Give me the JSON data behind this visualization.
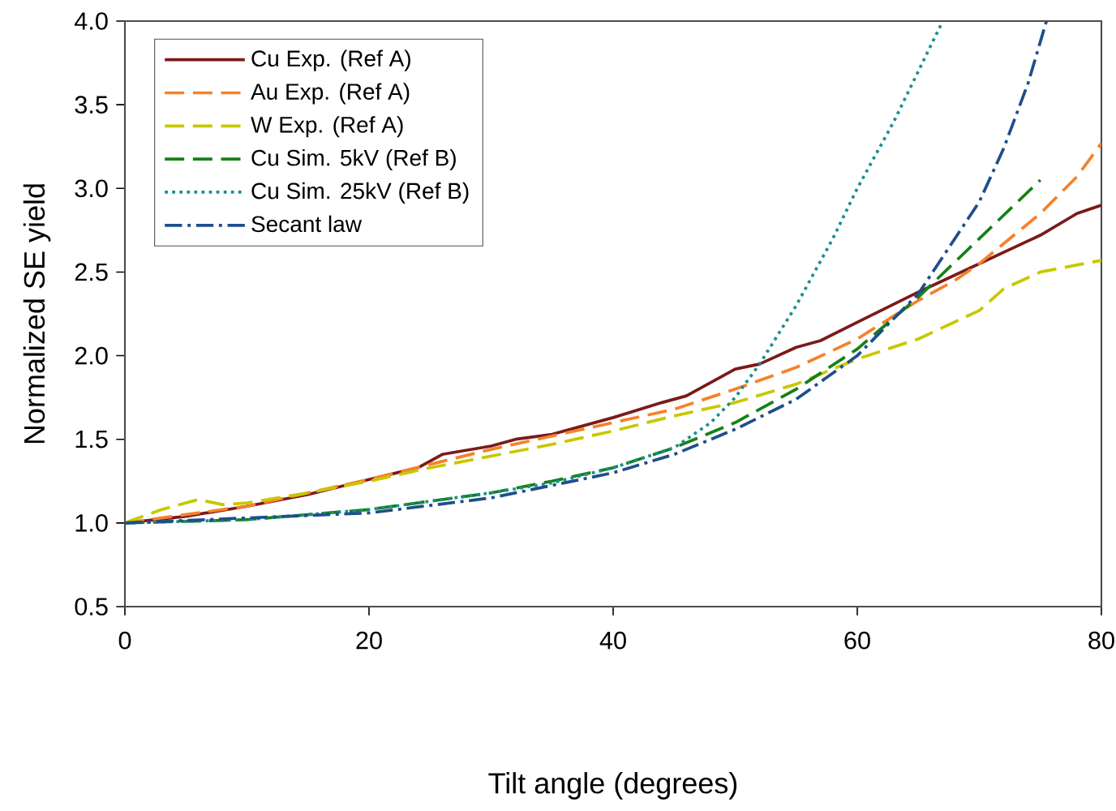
{
  "chart_data": {
    "type": "line",
    "xlabel": "Tilt angle (degrees)",
    "ylabel": "Normalized SE yield",
    "xlim": [
      0,
      80
    ],
    "ylim": [
      0.5,
      4.0
    ],
    "xticks": [
      0,
      20,
      40,
      60,
      80
    ],
    "yticks": [
      {
        "value": 0.5,
        "label": "0.5"
      },
      {
        "value": 1,
        "label": "1.0"
      },
      {
        "value": 1.5,
        "label": "1.5"
      },
      {
        "value": 2,
        "label": "2.0"
      },
      {
        "value": 2.5,
        "label": "2.5"
      },
      {
        "value": 3,
        "label": "3.0"
      },
      {
        "value": 3.5,
        "label": "3.5"
      },
      {
        "value": 4,
        "label": "4.0"
      }
    ],
    "legend": "top left",
    "grid": false,
    "marker": "none",
    "series": [
      {
        "name": "Cu Exp. (Ref A)",
        "color": "#7b1a1a",
        "line_style": "solid",
        "x": [
          0,
          5,
          10,
          15,
          20,
          24,
          26,
          30,
          32,
          35,
          40,
          44,
          46,
          50,
          52,
          55,
          57,
          60,
          65,
          70,
          75,
          78,
          80
        ],
        "values": [
          1.0,
          1.04,
          1.1,
          1.17,
          1.26,
          1.33,
          1.41,
          1.46,
          1.5,
          1.53,
          1.63,
          1.72,
          1.76,
          1.92,
          1.95,
          2.05,
          2.09,
          2.2,
          2.38,
          2.55,
          2.72,
          2.85,
          2.9
        ]
      },
      {
        "name": "Au Exp. (Ref A)",
        "color": "#f5822a",
        "line_style": "dashed",
        "x": [
          0,
          10,
          20,
          30,
          40,
          45,
          50,
          55,
          60,
          65,
          68,
          70,
          75,
          78,
          80
        ],
        "values": [
          1.0,
          1.1,
          1.26,
          1.44,
          1.6,
          1.68,
          1.8,
          1.93,
          2.1,
          2.33,
          2.45,
          2.55,
          2.85,
          3.07,
          3.27
        ]
      },
      {
        "name": "W Exp. (Ref A)",
        "color": "#c8c800",
        "line_style": "dashed",
        "x": [
          0,
          3,
          6,
          8,
          10,
          15,
          20,
          25,
          30,
          35,
          40,
          45,
          50,
          55,
          60,
          65,
          70,
          72,
          75,
          80
        ],
        "values": [
          1.0,
          1.08,
          1.14,
          1.11,
          1.12,
          1.18,
          1.25,
          1.33,
          1.4,
          1.47,
          1.55,
          1.64,
          1.72,
          1.83,
          1.98,
          2.1,
          2.27,
          2.4,
          2.5,
          2.57
        ]
      },
      {
        "name": "Cu Sim. 5kV (Ref B)",
        "color": "#178017",
        "line_style": "dashed",
        "x": [
          0,
          10,
          20,
          30,
          35,
          40,
          45,
          50,
          55,
          60,
          65,
          70,
          75
        ],
        "values": [
          1.0,
          1.02,
          1.08,
          1.18,
          1.25,
          1.33,
          1.45,
          1.6,
          1.8,
          2.04,
          2.35,
          2.7,
          3.05
        ]
      },
      {
        "name": "Cu Sim. 25kV (Ref B)",
        "color": "#1a8f8f",
        "line_style": "dotted",
        "x": [
          0,
          10,
          20,
          30,
          35,
          40,
          45,
          48,
          50,
          52,
          55,
          58,
          60,
          63,
          65,
          67
        ],
        "values": [
          1.0,
          1.02,
          1.08,
          1.18,
          1.24,
          1.33,
          1.45,
          1.6,
          1.75,
          1.95,
          2.3,
          2.7,
          3.0,
          3.4,
          3.7,
          4.0
        ]
      },
      {
        "name": "Secant law",
        "color": "#1f4e8c",
        "line_style": "dashdot",
        "x": [
          0,
          20,
          30,
          40,
          45,
          50,
          55,
          60,
          65,
          70,
          72,
          74,
          75.5
        ],
        "values": [
          1.0,
          1.06,
          1.15,
          1.3,
          1.41,
          1.56,
          1.74,
          2.0,
          2.37,
          2.92,
          3.24,
          3.63,
          4.0
        ]
      }
    ]
  }
}
